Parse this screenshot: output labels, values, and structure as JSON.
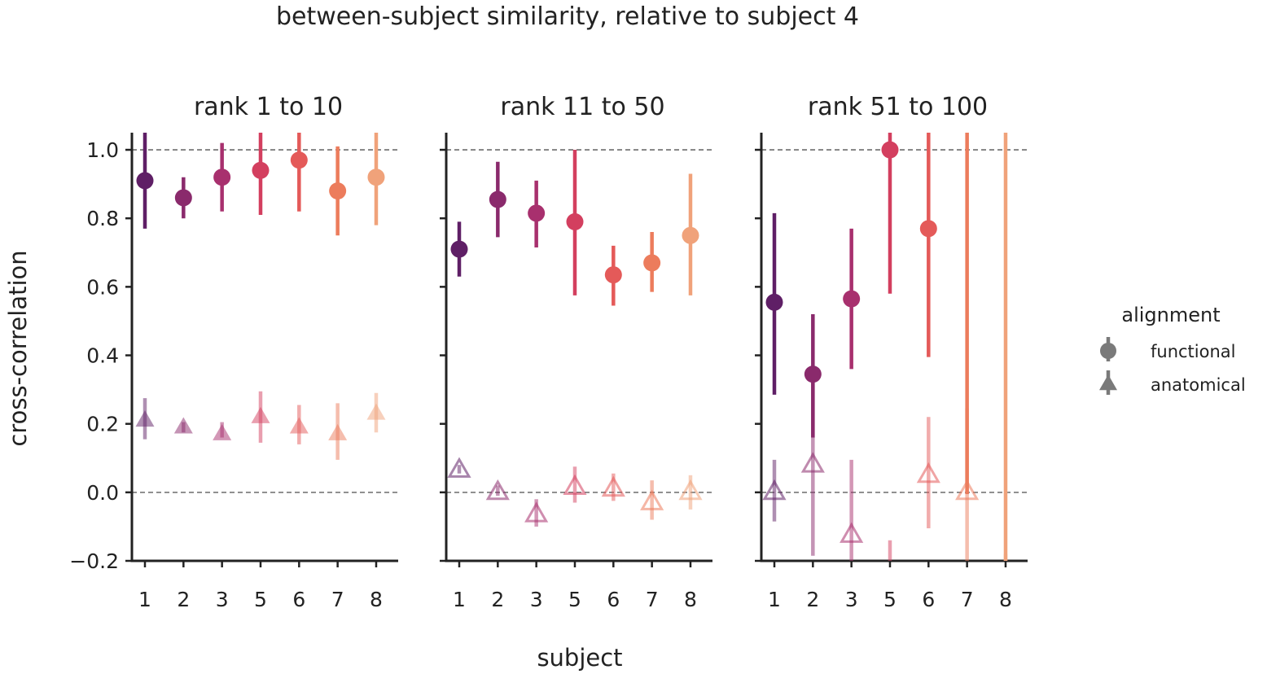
{
  "chart_data": {
    "type": "scatter",
    "title": "between-subject similarity, relative to subject 4",
    "xlabel": "subject",
    "ylabel": "cross-correlation",
    "ylim": [
      -0.2,
      1.05
    ],
    "yticks": [
      "−0.2",
      "0.0",
      "0.2",
      "0.4",
      "0.6",
      "0.8",
      "1.0"
    ],
    "categories": [
      "1",
      "2",
      "3",
      "5",
      "6",
      "7",
      "8"
    ],
    "reference_lines": [
      0.0,
      1.0
    ],
    "legend": {
      "title": "alignment",
      "placement": "right",
      "entries": [
        {
          "label": "functional",
          "marker": "circle"
        },
        {
          "label": "anatomical",
          "marker": "triangle"
        }
      ]
    },
    "colors": [
      "#5f1f66",
      "#8a2a6c",
      "#a8306e",
      "#d33f5f",
      "#e45a59",
      "#ec7c5c",
      "#f0a27a"
    ],
    "panels": [
      {
        "title": "rank 1 to 10",
        "functional": {
          "values": [
            0.91,
            0.86,
            0.92,
            0.94,
            0.97,
            0.88,
            0.92
          ],
          "ci": [
            [
              0.77,
              1.05
            ],
            [
              0.8,
              0.92
            ],
            [
              0.82,
              1.02
            ],
            [
              0.81,
              1.05
            ],
            [
              0.82,
              1.05
            ],
            [
              0.75,
              1.01
            ],
            [
              0.78,
              1.05
            ]
          ]
        },
        "anatomical": {
          "values": [
            0.21,
            0.19,
            0.17,
            0.22,
            0.19,
            0.17,
            0.23
          ],
          "ci": [
            [
              0.155,
              0.275
            ],
            [
              0.175,
              0.205
            ],
            [
              0.16,
              0.205
            ],
            [
              0.145,
              0.295
            ],
            [
              0.14,
              0.255
            ],
            [
              0.095,
              0.26
            ],
            [
              0.175,
              0.29
            ]
          ],
          "style": "filled"
        }
      },
      {
        "title": "rank 11 to 50",
        "functional": {
          "values": [
            0.71,
            0.855,
            0.815,
            0.79,
            0.635,
            0.67,
            0.75
          ],
          "ci": [
            [
              0.63,
              0.79
            ],
            [
              0.745,
              0.965
            ],
            [
              0.715,
              0.91
            ],
            [
              0.575,
              1.0
            ],
            [
              0.545,
              0.72
            ],
            [
              0.585,
              0.76
            ],
            [
              0.575,
              0.93
            ]
          ]
        },
        "anatomical": {
          "values": [
            0.065,
            0.0,
            -0.065,
            0.015,
            0.01,
            -0.03,
            0.0
          ],
          "ci": [
            [
              0.055,
              0.08
            ],
            [
              -0.01,
              0.02
            ],
            [
              -0.1,
              -0.02
            ],
            [
              -0.03,
              0.075
            ],
            [
              -0.025,
              0.055
            ],
            [
              -0.08,
              0.035
            ],
            [
              -0.05,
              0.05
            ]
          ],
          "style": "hollow"
        }
      },
      {
        "title": "rank 51 to 100",
        "functional": {
          "values": [
            0.555,
            0.345,
            0.565,
            1.0,
            0.77,
            null,
            null
          ],
          "ci": [
            [
              0.285,
              0.815
            ],
            [
              0.16,
              0.52
            ],
            [
              0.36,
              0.77
            ],
            [
              0.58,
              1.05
            ],
            [
              0.395,
              1.05
            ],
            [
              -0.005,
              1.05
            ],
            [
              -0.2,
              1.05
            ]
          ]
        },
        "anatomical": {
          "values": [
            0.0,
            0.08,
            -0.125,
            null,
            0.05,
            0.0,
            null
          ],
          "ci": [
            [
              -0.085,
              0.095
            ],
            [
              -0.185,
              0.335
            ],
            [
              -0.2,
              0.095
            ],
            [
              -0.2,
              -0.14
            ],
            [
              -0.105,
              0.22
            ],
            [
              -0.2,
              0.245
            ],
            [
              -0.2,
              -0.18
            ]
          ],
          "style": "hollow"
        }
      }
    ]
  }
}
